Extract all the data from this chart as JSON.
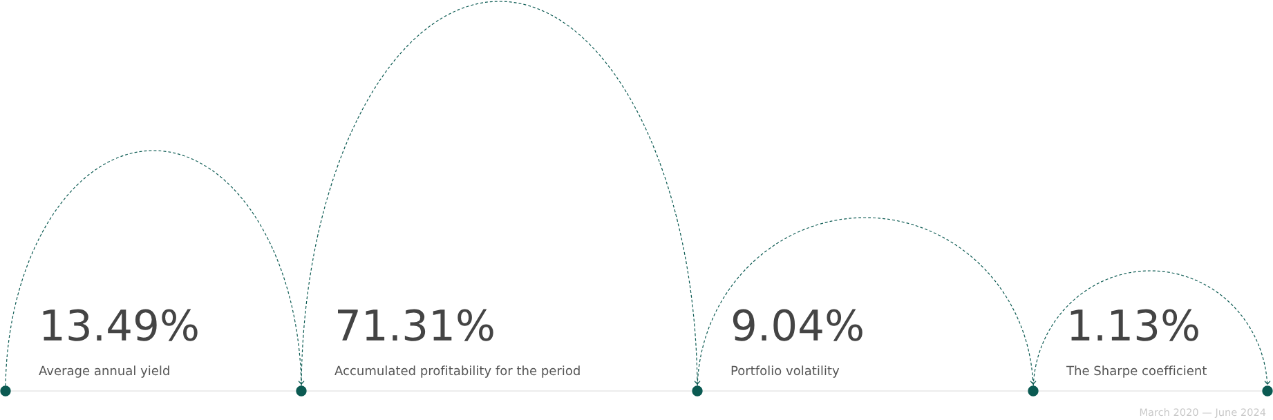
{
  "chart_data": {
    "type": "other",
    "categories": [
      "Average annual yield",
      "Accumulated profitability for the period",
      "Portfolio volatility",
      "The Sharpe coefficient"
    ],
    "values": [
      13.49,
      71.31,
      9.04,
      1.13
    ],
    "value_labels": [
      "13.49%",
      "71.31%",
      "9.04%",
      "1.13%"
    ],
    "color": "#0b5a52",
    "annotations": [
      "March 2020 — June 2024"
    ]
  }
}
